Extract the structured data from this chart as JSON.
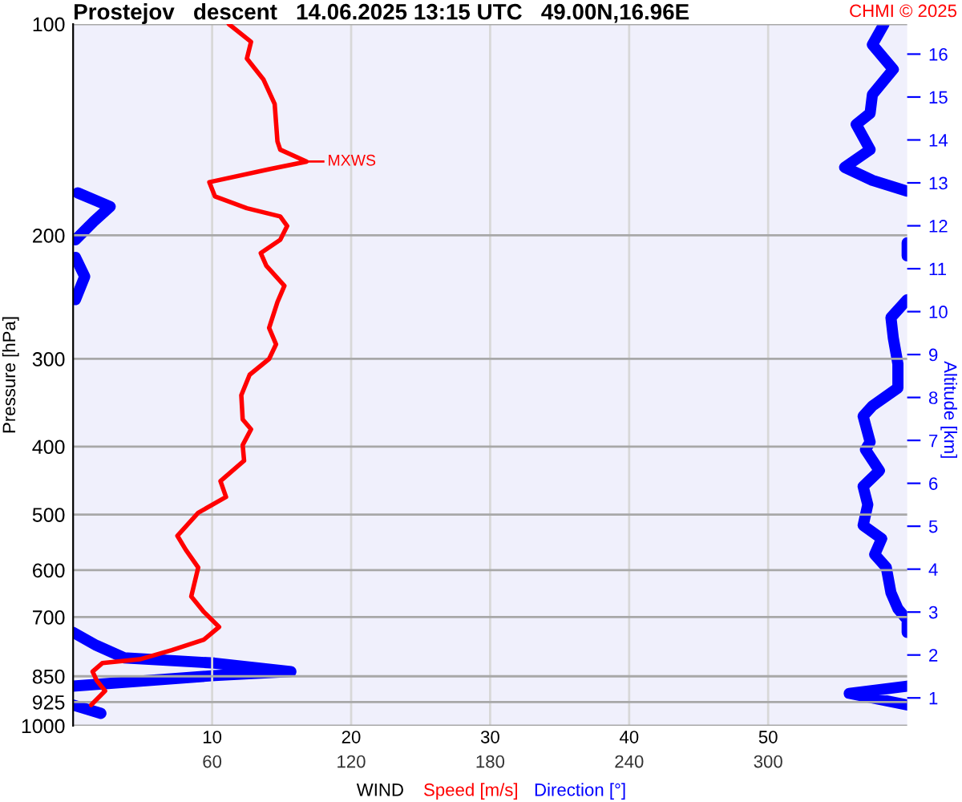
{
  "chart_data": {
    "type": "line",
    "orientation": "horizontal",
    "title": "Prostejov   descent   14.06.2025 13:15 UTC   49.00N,16.96E",
    "xlabel": "WIND",
    "ylabel": "Pressure [hPa]",
    "y2label": "Altitude [km]",
    "annotations": [
      "CHMI © 2025",
      {
        "text": "MXWS",
        "x": 16.8,
        "y": 157
      }
    ],
    "log": "y",
    "grid": true,
    "line_style": "solid",
    "marker": "none",
    "xlim": [
      0,
      60
    ],
    "xticks": [
      10,
      20,
      30,
      40,
      50
    ],
    "x2lim": [
      0,
      360
    ],
    "x2ticks": [
      60,
      120,
      180,
      240,
      300
    ],
    "ylim": [
      1000,
      100
    ],
    "yticks": [
      100,
      200,
      300,
      400,
      500,
      600,
      700,
      850,
      925,
      1000
    ],
    "y2lim": [
      0.35,
      16.7
    ],
    "y2ticks": [
      1,
      2,
      3,
      4,
      5,
      6,
      7,
      8,
      9,
      10,
      11,
      12,
      13,
      14,
      15,
      16
    ],
    "series": [
      {
        "name": "Speed [m/s]",
        "color": "#ff0000",
        "values": [
          11.2,
          12.8,
          12.5,
          13.7,
          14.5,
          14.7,
          14.9,
          16.8,
          14.1,
          9.8,
          10.2,
          12.5,
          14.9,
          15.4,
          14.9,
          13.5,
          13.9,
          15.2,
          14.7,
          14.1,
          14.6,
          14.1,
          12.7,
          12.1,
          12.2,
          12.8,
          12.2,
          12.3,
          10.6,
          11.0,
          9.0,
          7.5,
          8.1,
          9.0,
          8.5,
          9.4,
          10.5,
          9.4,
          7.1,
          4.8,
          2.1,
          1.4,
          1.7,
          2.3,
          1.3
        ],
        "x": [
          100,
          106,
          112,
          120,
          130,
          147,
          151,
          157,
          161,
          168,
          176,
          183,
          188,
          194,
          203,
          212,
          221,
          236,
          249,
          271,
          286,
          300,
          316,
          338,
          366,
          378,
          398,
          419,
          448,
          472,
          497,
          536,
          561,
          595,
          654,
          688,
          723,
          754,
          780,
          804,
          814,
          837,
          862,
          892,
          934
        ]
      },
      {
        "name": "Direction [°]",
        "color": "#0000ff",
        "axis": "x2",
        "values": [
          350,
          345,
          354,
          345,
          344,
          338,
          344,
          333,
          345,
          360,
          null,
          2,
          16,
          9,
          1,
          null,
          360,
          360,
          null,
          1,
          5,
          1,
          null,
          360,
          353,
          354,
          356,
          356,
          345,
          341,
          344,
          342,
          348,
          341,
          343,
          341,
          349,
          346,
          351,
          353,
          356,
          360,
          360,
          null,
          0,
          10,
          22,
          61,
          94,
          61,
          0,
          null,
          360,
          335,
          360,
          null,
          0,
          12
        ],
        "x": [
          100,
          107,
          116,
          126,
          134,
          139,
          151,
          160,
          167,
          173,
          null,
          174,
          182,
          191,
          203,
          null,
          205,
          214,
          null,
          215,
          229,
          247,
          null,
          247,
          262,
          280,
          305,
          330,
          350,
          362,
          394,
          404,
          433,
          456,
          484,
          518,
          541,
          570,
          595,
          646,
          681,
          706,
          736,
          null,
          736,
          768,
          800,
          814,
          837,
          848,
          878,
          null,
          878,
          899,
          934,
          null,
          934,
          960
        ]
      }
    ]
  }
}
